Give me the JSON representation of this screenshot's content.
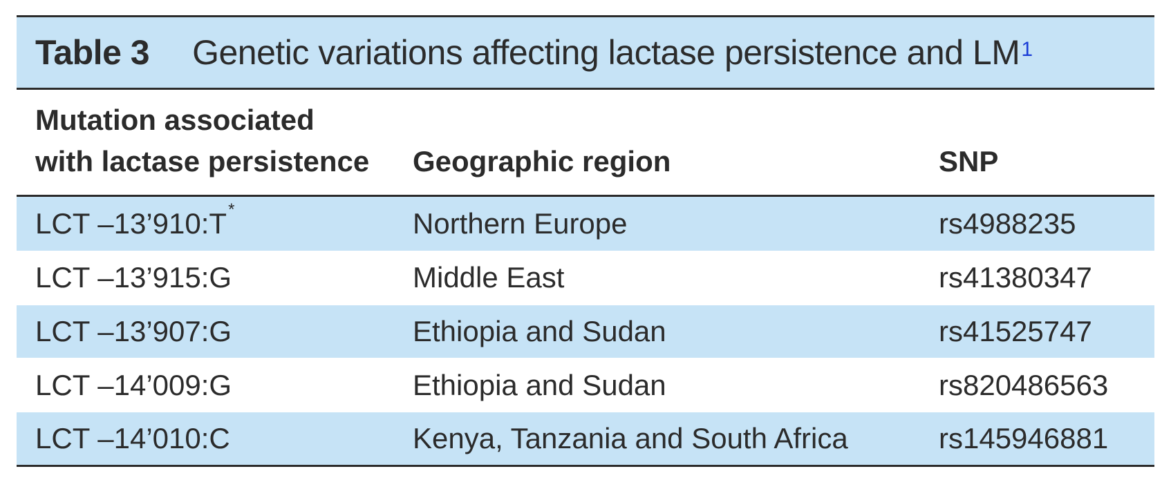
{
  "table": {
    "label": "Table 3",
    "title": "Genetic variations affecting lactase persistence and LM",
    "title_footnote": "1",
    "headers": {
      "mutation_line1": "Mutation associated",
      "mutation_line2": "with lactase persistence",
      "region": "Geographic region",
      "snp": "SNP"
    },
    "rows": [
      {
        "mutation": "LCT –13’910:T",
        "footnote": "*",
        "region": "Northern Europe",
        "snp": "rs4988235"
      },
      {
        "mutation": "LCT –13’915:G",
        "footnote": "",
        "region": "Middle East",
        "snp": "rs41380347"
      },
      {
        "mutation": "LCT –13’907:G",
        "footnote": "",
        "region": "Ethiopia and Sudan",
        "snp": "rs41525747"
      },
      {
        "mutation": "LCT –14’009:G",
        "footnote": "",
        "region": "Ethiopia and Sudan",
        "snp": "rs820486563"
      },
      {
        "mutation": "LCT –14’010:C",
        "footnote": "",
        "region": "Kenya, Tanzania and South Africa",
        "snp": "rs145946881"
      }
    ],
    "colors": {
      "band": "#c6e3f6",
      "rule": "#2b2b2b",
      "footnote_link": "#1a3dd6"
    }
  }
}
